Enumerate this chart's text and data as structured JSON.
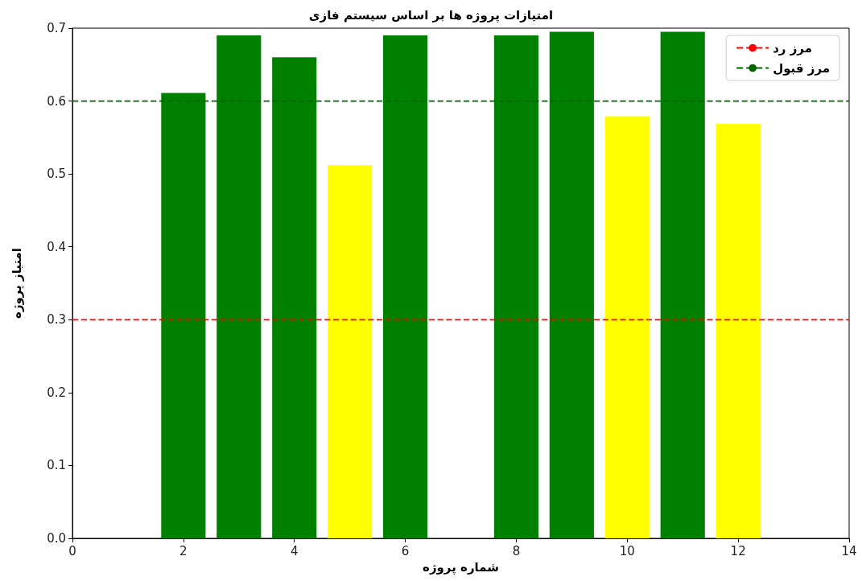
{
  "chart_data": {
    "type": "bar",
    "title": "امتیازات پروژه ها بر اساس سیستم فازی",
    "xlabel": "شماره پروژه",
    "ylabel": "امتیاز پروژه",
    "x": [
      2,
      3,
      4,
      5,
      6,
      8,
      9,
      10,
      11,
      12
    ],
    "values": [
      0.611,
      0.69,
      0.66,
      0.512,
      0.69,
      0.69,
      0.695,
      0.579,
      0.695,
      0.569
    ],
    "colors": [
      "#008000",
      "#008000",
      "#008000",
      "#ffff00",
      "#008000",
      "#008000",
      "#008000",
      "#ffff00",
      "#008000",
      "#ffff00"
    ],
    "xlim": [
      0,
      14
    ],
    "xticks": [
      0,
      2,
      4,
      6,
      8,
      10,
      12,
      14
    ],
    "ylim": [
      0,
      0.7
    ],
    "yticks": [
      {
        "value": 0,
        "label": "0.0"
      },
      0.1,
      0.2,
      0.3,
      0.4,
      0.5,
      0.6,
      0.7
    ],
    "ref_lines": [
      {
        "axis": "y",
        "value": 0.3,
        "label": "مرز رد",
        "color": "#ff0000",
        "line_style": "dashed"
      },
      {
        "axis": "y",
        "value": 0.6,
        "label": "مرز قبول",
        "color": "#006400",
        "line_style": "dashed"
      }
    ],
    "legend": "top right",
    "grid": false
  }
}
